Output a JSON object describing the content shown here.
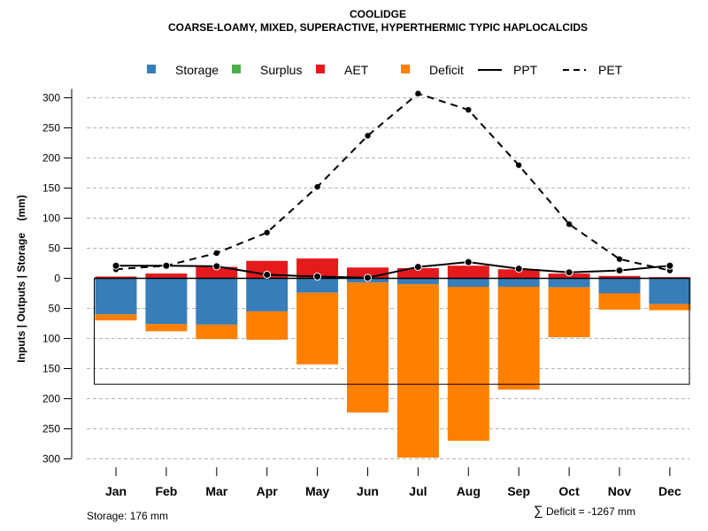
{
  "chart_data": {
    "type": "bar",
    "title": "COOLIDGE",
    "subtitle": "COARSE-LOAMY, MIXED, SUPERACTIVE, HYPERTHERMIC TYPIC HAPLOCALCIDS",
    "xlabel": "",
    "ylabel": "Inputs | Outputs | Storage    (mm)",
    "categories": [
      "Jan",
      "Feb",
      "Mar",
      "Apr",
      "May",
      "Jun",
      "Jul",
      "Aug",
      "Sep",
      "Oct",
      "Nov",
      "Dec"
    ],
    "ylim": [
      -300,
      300
    ],
    "y_ticks": [
      300,
      250,
      200,
      150,
      100,
      50,
      0,
      -50,
      -100,
      -150,
      -200,
      -250,
      -300
    ],
    "y_tick_labels": [
      "300",
      "250",
      "200",
      "150",
      "100",
      "50",
      "0",
      "50",
      "100",
      "150",
      "200",
      "250",
      "300"
    ],
    "grid": true,
    "legend_position": "top",
    "legend": [
      {
        "name": "Storage",
        "kind": "swatch",
        "color": "#377EB8"
      },
      {
        "name": "Surplus",
        "kind": "swatch",
        "color": "#4DAF4A"
      },
      {
        "name": "AET",
        "kind": "swatch",
        "color": "#E41A1C"
      },
      {
        "name": "Deficit",
        "kind": "swatch",
        "color": "#FF7F00"
      },
      {
        "name": "PPT",
        "kind": "solid-line",
        "color": "#000000"
      },
      {
        "name": "PET",
        "kind": "dashed-line",
        "color": "#000000"
      }
    ],
    "series": [
      {
        "name": "AET",
        "type": "bar",
        "direction": "up",
        "color": "#E41A1C",
        "values": [
          3,
          8,
          19,
          29,
          33,
          18,
          17,
          21,
          15,
          8,
          4,
          2
        ]
      },
      {
        "name": "Surplus",
        "type": "bar",
        "direction": "up",
        "color": "#4DAF4A",
        "values": [
          0,
          0,
          0,
          0,
          0,
          0,
          0,
          0,
          0,
          0,
          0,
          0
        ]
      },
      {
        "name": "Storage",
        "type": "bar",
        "direction": "down",
        "color": "#377EB8",
        "values": [
          60,
          76,
          77,
          55,
          24,
          7,
          10,
          14,
          14,
          15,
          25,
          43
        ]
      },
      {
        "name": "Deficit",
        "type": "bar",
        "direction": "down",
        "stacked_below": "Storage",
        "color": "#FF7F00",
        "values": [
          10,
          12,
          24,
          47,
          119,
          216,
          288,
          256,
          171,
          83,
          27,
          10
        ]
      },
      {
        "name": "PPT",
        "type": "line",
        "style": "solid",
        "color": "#000000",
        "values": [
          21,
          21,
          20,
          6,
          3,
          1,
          19,
          27,
          16,
          10,
          13,
          21
        ]
      },
      {
        "name": "PET",
        "type": "line",
        "style": "dashed",
        "color": "#000000",
        "values": [
          15,
          21,
          42,
          76,
          152,
          237,
          307,
          280,
          188,
          90,
          32,
          13
        ]
      }
    ],
    "storage_capacity": 176,
    "annotations": {
      "storage": "Storage: 176 mm",
      "deficit_sum_symbol": "∑",
      "deficit_sum": "Deficit = -1267 mm"
    }
  }
}
